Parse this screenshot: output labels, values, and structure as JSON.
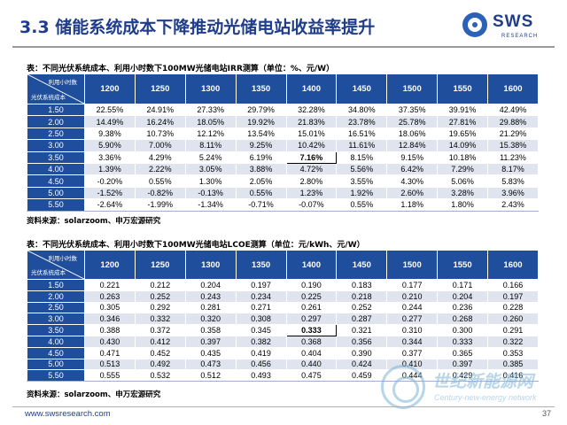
{
  "slide": {
    "title": "3.3 储能系统成本下降推动光储电站收益率提升",
    "logo_text": "SWS",
    "logo_sub": "RESEARCH",
    "url": "www.swsresearch.com",
    "page_number": "37"
  },
  "watermark": {
    "text": "世纪新能源网",
    "sub": "Century-new-energy network"
  },
  "table1": {
    "caption": "表：不同光伏系统成本、利用小时数下100MW光储电站IRR测算（单位：%、元/W）",
    "corner_top": "利用小时数",
    "corner_bottom": "光伏系统成本",
    "columns": [
      "1200",
      "1250",
      "1300",
      "1350",
      "1400",
      "1450",
      "1500",
      "1550",
      "1600"
    ],
    "rows": [
      {
        "label": "1.50",
        "values": [
          "22.55%",
          "24.91%",
          "27.33%",
          "29.79%",
          "32.28%",
          "34.80%",
          "37.35%",
          "39.91%",
          "42.49%"
        ]
      },
      {
        "label": "2.00",
        "values": [
          "14.49%",
          "16.24%",
          "18.05%",
          "19.92%",
          "21.83%",
          "23.78%",
          "25.78%",
          "27.81%",
          "29.88%"
        ]
      },
      {
        "label": "2.50",
        "values": [
          "9.38%",
          "10.73%",
          "12.12%",
          "13.54%",
          "15.01%",
          "16.51%",
          "18.06%",
          "19.65%",
          "21.29%"
        ]
      },
      {
        "label": "3.00",
        "values": [
          "5.90%",
          "7.00%",
          "8.11%",
          "9.25%",
          "10.42%",
          "11.61%",
          "12.84%",
          "14.09%",
          "15.38%"
        ]
      },
      {
        "label": "3.50",
        "values": [
          "3.36%",
          "4.29%",
          "5.24%",
          "6.19%",
          "7.16%",
          "8.15%",
          "9.15%",
          "10.18%",
          "11.23%"
        ]
      },
      {
        "label": "4.00",
        "values": [
          "1.39%",
          "2.22%",
          "3.05%",
          "3.88%",
          "4.72%",
          "5.56%",
          "6.42%",
          "7.29%",
          "8.17%"
        ]
      },
      {
        "label": "4.50",
        "values": [
          "-0.20%",
          "0.55%",
          "1.30%",
          "2.05%",
          "2.80%",
          "3.55%",
          "4.30%",
          "5.06%",
          "5.83%"
        ]
      },
      {
        "label": "5.00",
        "values": [
          "-1.52%",
          "-0.82%",
          "-0.13%",
          "0.55%",
          "1.23%",
          "1.92%",
          "2.60%",
          "3.28%",
          "3.96%"
        ]
      },
      {
        "label": "5.50",
        "values": [
          "-2.64%",
          "-1.99%",
          "-1.34%",
          "-0.71%",
          "-0.07%",
          "0.55%",
          "1.18%",
          "1.80%",
          "2.43%"
        ]
      }
    ],
    "highlight": {
      "row": 4,
      "col": 4
    },
    "source": "资料来源：solarzoom、申万宏源研究"
  },
  "table2": {
    "caption": "表：不同光伏系统成本、利用小时数下100MW光储电站LCOE测算（单位：元/kWh、元/W）",
    "corner_top": "利用小时数",
    "corner_bottom": "光伏系统成本",
    "columns": [
      "1200",
      "1250",
      "1300",
      "1350",
      "1400",
      "1450",
      "1500",
      "1550",
      "1600"
    ],
    "rows": [
      {
        "label": "1.50",
        "values": [
          "0.221",
          "0.212",
          "0.204",
          "0.197",
          "0.190",
          "0.183",
          "0.177",
          "0.171",
          "0.166"
        ]
      },
      {
        "label": "2.00",
        "values": [
          "0.263",
          "0.252",
          "0.243",
          "0.234",
          "0.225",
          "0.218",
          "0.210",
          "0.204",
          "0.197"
        ]
      },
      {
        "label": "2.50",
        "values": [
          "0.305",
          "0.292",
          "0.281",
          "0.271",
          "0.261",
          "0.252",
          "0.244",
          "0.236",
          "0.228"
        ]
      },
      {
        "label": "3.00",
        "values": [
          "0.346",
          "0.332",
          "0.320",
          "0.308",
          "0.297",
          "0.287",
          "0.277",
          "0.268",
          "0.260"
        ]
      },
      {
        "label": "3.50",
        "values": [
          "0.388",
          "0.372",
          "0.358",
          "0.345",
          "0.333",
          "0.321",
          "0.310",
          "0.300",
          "0.291"
        ]
      },
      {
        "label": "4.00",
        "values": [
          "0.430",
          "0.412",
          "0.397",
          "0.382",
          "0.368",
          "0.356",
          "0.344",
          "0.333",
          "0.322"
        ]
      },
      {
        "label": "4.50",
        "values": [
          "0.471",
          "0.452",
          "0.435",
          "0.419",
          "0.404",
          "0.390",
          "0.377",
          "0.365",
          "0.353"
        ]
      },
      {
        "label": "5.00",
        "values": [
          "0.513",
          "0.492",
          "0.473",
          "0.456",
          "0.440",
          "0.424",
          "0.410",
          "0.397",
          "0.385"
        ]
      },
      {
        "label": "5.50",
        "values": [
          "0.555",
          "0.532",
          "0.512",
          "0.493",
          "0.475",
          "0.459",
          "0.444",
          "0.429",
          "0.416"
        ]
      }
    ],
    "highlight": {
      "row": 4,
      "col": 4
    },
    "source": "资料来源：solarzoom、申万宏源研究"
  }
}
